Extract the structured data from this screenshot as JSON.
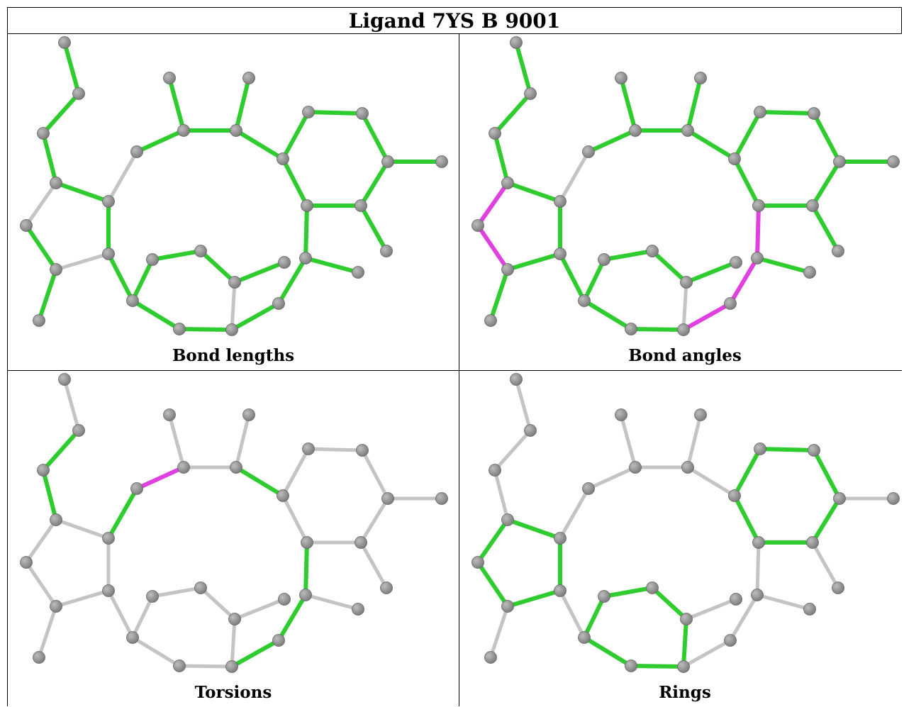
{
  "title": "Ligand 7YS B 9001",
  "panels": [
    {
      "caption": "Bond lengths"
    },
    {
      "caption": "Bond angles"
    },
    {
      "caption": "Torsions"
    },
    {
      "caption": "Rings"
    }
  ],
  "colors": {
    "pass_bond": "#2ecc2e",
    "outlier_bond": "#e040e0",
    "neutral_bond": "#c4c4c4",
    "atom": "#7a7a7a"
  }
}
